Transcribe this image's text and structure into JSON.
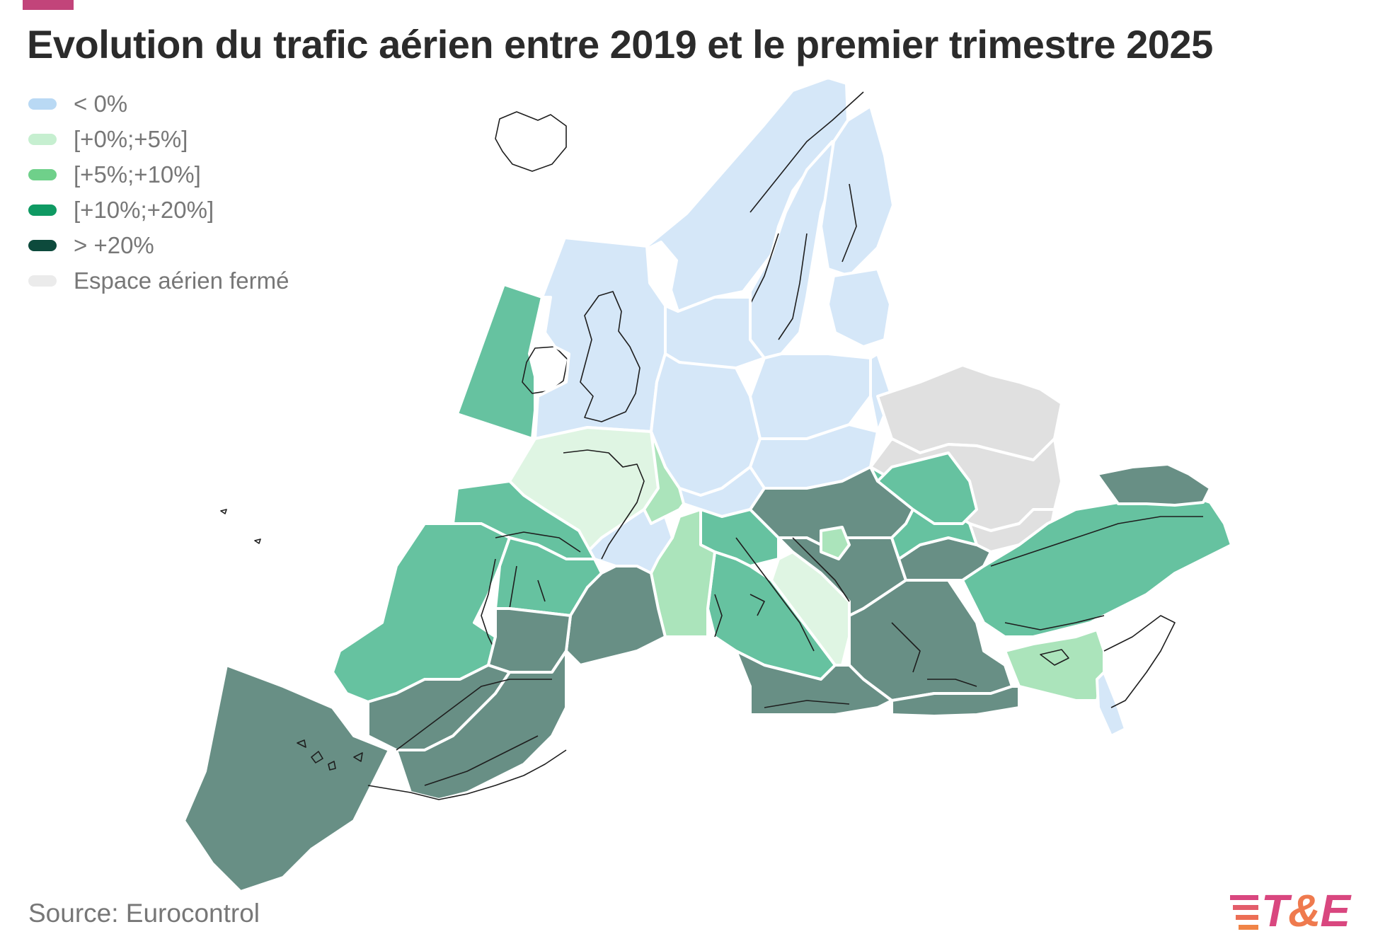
{
  "title": "Evolution du trafic aérien entre 2019 et le premier trimestre 2025",
  "legend": [
    {
      "label": "< 0%",
      "color": "#b9d9f4"
    },
    {
      "label": "[+0%;+5%]",
      "color": "#c6efd0"
    },
    {
      "label": "[+5%;+10%]",
      "color": "#6fd08a"
    },
    {
      "label": "[+10%;+20%]",
      "color": "#0f9a63"
    },
    {
      "label": "> +20%",
      "color": "#0d4a3c"
    },
    {
      "label": "Espace aérien fermé",
      "color": "#ebebeb"
    }
  ],
  "map_colors": {
    "below_0": "#d5e7f8",
    "p0_5": "#dff5e3",
    "p5_10": "#abe4bb",
    "p10_20": "#66c2a0",
    "above_20": "#688f85",
    "closed": "#e0e0e0"
  },
  "source": "Source: Eurocontrol",
  "logo": {
    "main": "T",
    "amp": "&",
    "end": "E",
    "accent_color": "#d9477f"
  }
}
